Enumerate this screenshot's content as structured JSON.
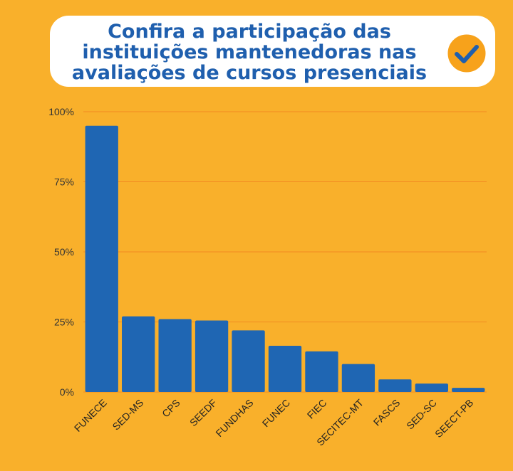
{
  "title_lines": [
    "Confira a participação das",
    "instituições mantenedoras nas",
    "avaliações de cursos presenciais"
  ],
  "icons": {
    "badge": "checkmark-icon"
  },
  "colors": {
    "background": "#f9b02b",
    "bar": "#1f66b3",
    "title": "#1f5fae",
    "gridline": "#f07a1e",
    "check_circle": "#f7a21b"
  },
  "chart_data": {
    "type": "bar",
    "title": "Confira a participação das instituições mantenedoras nas avaliações de cursos presenciais",
    "xlabel": "",
    "ylabel": "",
    "categories": [
      "FUNECE",
      "SED-MS",
      "CPS",
      "SEEDF",
      "FUNDHAS",
      "FUNEC",
      "FIEC",
      "SECITEC-MT",
      "FASCS",
      "SED-SC",
      "SEECT-PB"
    ],
    "values": [
      95,
      27,
      26,
      25.5,
      22,
      16.5,
      14.5,
      10,
      4.5,
      3,
      1.5
    ],
    "ylim": [
      0,
      100
    ],
    "yticks": [
      0,
      25,
      50,
      75,
      100
    ],
    "ytick_labels": [
      "0%",
      "25%",
      "50%",
      "75%",
      "100%"
    ],
    "grid": true,
    "legend": "none"
  }
}
